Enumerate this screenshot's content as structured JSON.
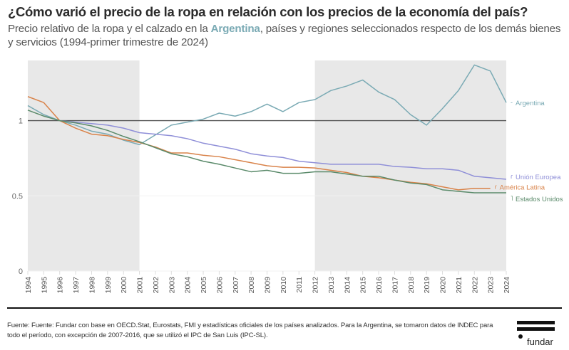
{
  "header": {
    "title": "¿Cómo varió el precio de la ropa en relación con los precios de la economía del país?",
    "subtitle_pre": "Precio relativo de la ropa y el calzado en la ",
    "subtitle_highlight": "Argentina",
    "subtitle_post": ", países y regiones seleccionados respecto de los demás bienes y servicios (1994-primer trimestre de 2024)"
  },
  "footer": {
    "source": "Fuente: Fuente: Fundar con base en OECD.Stat, Eurostats, FMI y estadísticas oficiales de los países analizados. Para la Argentina, se tomaron datos de INDEC para todo el período, con excepción de 2007-2016, que se utilizó el IPC de San Luis (IPC-SL).",
    "logo_text": "fundar"
  },
  "colors": {
    "argentina": "#7aaab4",
    "union_europea": "#8f8fd8",
    "america_latina": "#d9834a",
    "estados_unidos": "#5a8a6a",
    "shade": "#e8e8e8",
    "reference_line": "#555555"
  },
  "chart_data": {
    "type": "line",
    "title": "¿Cómo varió el precio de la ropa en relación con los precios de la economía del país?",
    "xlabel": "",
    "ylabel": "",
    "x": [
      1994,
      1995,
      1996,
      1997,
      1998,
      1999,
      2000,
      2001,
      2002,
      2003,
      2004,
      2005,
      2006,
      2007,
      2008,
      2009,
      2010,
      2011,
      2012,
      2013,
      2014,
      2015,
      2016,
      2017,
      2018,
      2019,
      2020,
      2021,
      2022,
      2023,
      2024
    ],
    "xlim": [
      1994,
      2024
    ],
    "ylim": [
      0,
      1.4
    ],
    "yticks": [
      0,
      0.5,
      1
    ],
    "ytick_labels": [
      "0",
      "0.5",
      "1"
    ],
    "xtick_labels": [
      "1994",
      "1995",
      "1996",
      "1997",
      "1998",
      "1999",
      "2000",
      "2001",
      "2002",
      "2003",
      "2004",
      "2005",
      "2006",
      "2007",
      "2008",
      "2009",
      "2010",
      "2011",
      "2012",
      "2013",
      "2014",
      "2015",
      "2016",
      "2017",
      "2018",
      "2019",
      "2020",
      "2021",
      "2022",
      "2023",
      "2024"
    ],
    "reference_line": 1,
    "shaded_periods": [
      [
        1994,
        2001
      ],
      [
        2012,
        2024
      ]
    ],
    "legend_placement": "right (direct labels at line ends)",
    "series": [
      {
        "name": "Argentina",
        "color_key": "argentina",
        "values": [
          1.1,
          1.04,
          1.0,
          0.97,
          0.93,
          0.91,
          0.87,
          0.84,
          0.905,
          0.97,
          0.99,
          1.01,
          1.05,
          1.03,
          1.06,
          1.11,
          1.06,
          1.12,
          1.14,
          1.2,
          1.23,
          1.27,
          1.19,
          1.14,
          1.04,
          0.97,
          1.08,
          1.2,
          1.37,
          1.33,
          1.12
        ]
      },
      {
        "name": "Unión Europea",
        "color_key": "union_europea",
        "values": [
          null,
          null,
          1.0,
          0.99,
          0.98,
          0.97,
          0.95,
          0.92,
          0.91,
          0.9,
          0.88,
          0.85,
          0.83,
          0.81,
          0.78,
          0.765,
          0.755,
          0.73,
          0.72,
          0.71,
          0.71,
          0.71,
          0.71,
          0.695,
          0.69,
          0.68,
          0.68,
          0.67,
          0.63,
          0.62,
          0.61
        ]
      },
      {
        "name": "América Latina",
        "color_key": "america_latina",
        "values": [
          1.16,
          1.12,
          1.0,
          0.95,
          0.91,
          0.9,
          0.875,
          0.855,
          0.825,
          0.785,
          0.785,
          0.77,
          0.76,
          0.74,
          0.72,
          0.7,
          0.69,
          0.69,
          0.685,
          0.67,
          0.655,
          0.63,
          0.62,
          0.605,
          0.59,
          0.58,
          0.56,
          0.54,
          0.55,
          0.55,
          null
        ]
      },
      {
        "name": "Estados Unidos",
        "color_key": "estados_unidos",
        "values": [
          1.07,
          1.03,
          1.0,
          0.985,
          0.965,
          0.935,
          0.895,
          0.86,
          0.82,
          0.78,
          0.76,
          0.73,
          0.71,
          0.685,
          0.66,
          0.67,
          0.65,
          0.65,
          0.66,
          0.66,
          0.645,
          0.63,
          0.63,
          0.605,
          0.585,
          0.575,
          0.54,
          0.53,
          0.52,
          0.52,
          0.52
        ]
      }
    ]
  }
}
